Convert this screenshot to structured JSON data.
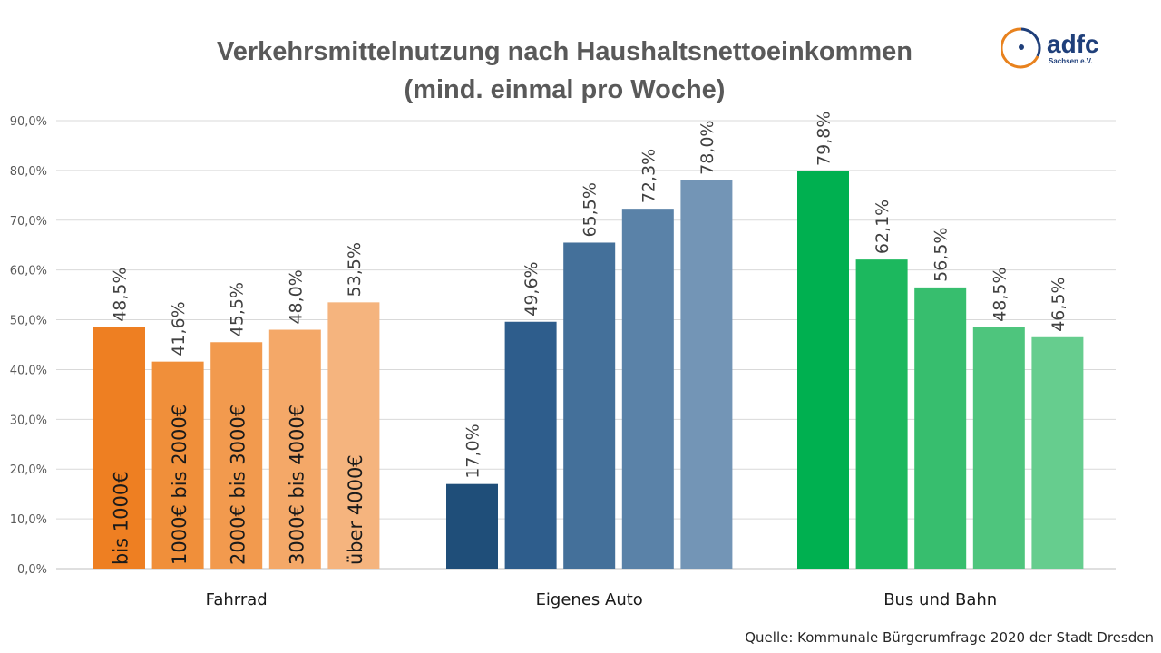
{
  "logo": {
    "text": "adfc",
    "subtext": "Sachsen e.V.",
    "colors": {
      "ring": "#E8821E",
      "text": "#1F3F7A"
    }
  },
  "source": "Quelle: Kommunale Bürgerumfrage 2020 der Stadt Dresden",
  "chart_data": {
    "type": "bar",
    "title_lines": [
      "Verkehrsmittelnutzung nach Haushaltsnettoeinkommen",
      "(mind. einmal pro Woche)"
    ],
    "categories": [
      "Fahrrad",
      "Eigenes Auto",
      "Bus und Bahn"
    ],
    "series": [
      {
        "name": "bis 1000€",
        "values": [
          48.5,
          17.0,
          79.8
        ],
        "value_labels": [
          "48,5%",
          "17,0%",
          "79,8%"
        ]
      },
      {
        "name": "1000€ bis 2000€",
        "values": [
          41.6,
          49.6,
          62.1
        ],
        "value_labels": [
          "41,6%",
          "49,6%",
          "62,1%"
        ]
      },
      {
        "name": "2000€ bis 3000€",
        "values": [
          45.5,
          65.5,
          56.5
        ],
        "value_labels": [
          "45,5%",
          "65,5%",
          "56,5%"
        ]
      },
      {
        "name": "3000€ bis 4000€",
        "values": [
          48.0,
          72.3,
          48.5
        ],
        "value_labels": [
          "48,0%",
          "72,3%",
          "48,5%"
        ]
      },
      {
        "name": "über 4000€",
        "values": [
          53.5,
          78.0,
          46.5
        ],
        "value_labels": [
          "53,5%",
          "78,0%",
          "46,5%"
        ]
      }
    ],
    "colors": [
      [
        "#EE7F22",
        "#F08F3A",
        "#F29A4E",
        "#F4A868",
        "#F5B47E"
      ],
      [
        "#1F4E79",
        "#2E5D8C",
        "#44709A",
        "#5A82A8",
        "#7395B6"
      ],
      [
        "#00B050",
        "#1CB85E",
        "#37BE6E",
        "#4EC57D",
        "#66CD8E"
      ]
    ],
    "ylim": [
      0,
      90
    ],
    "yticks": [
      "0,0%",
      "10,0%",
      "20,0%",
      "30,0%",
      "40,0%",
      "50,0%",
      "60,0%",
      "70,0%",
      "80,0%",
      "90,0%"
    ],
    "grid": true,
    "legend": "series names printed inside the Fahrrad bars"
  }
}
